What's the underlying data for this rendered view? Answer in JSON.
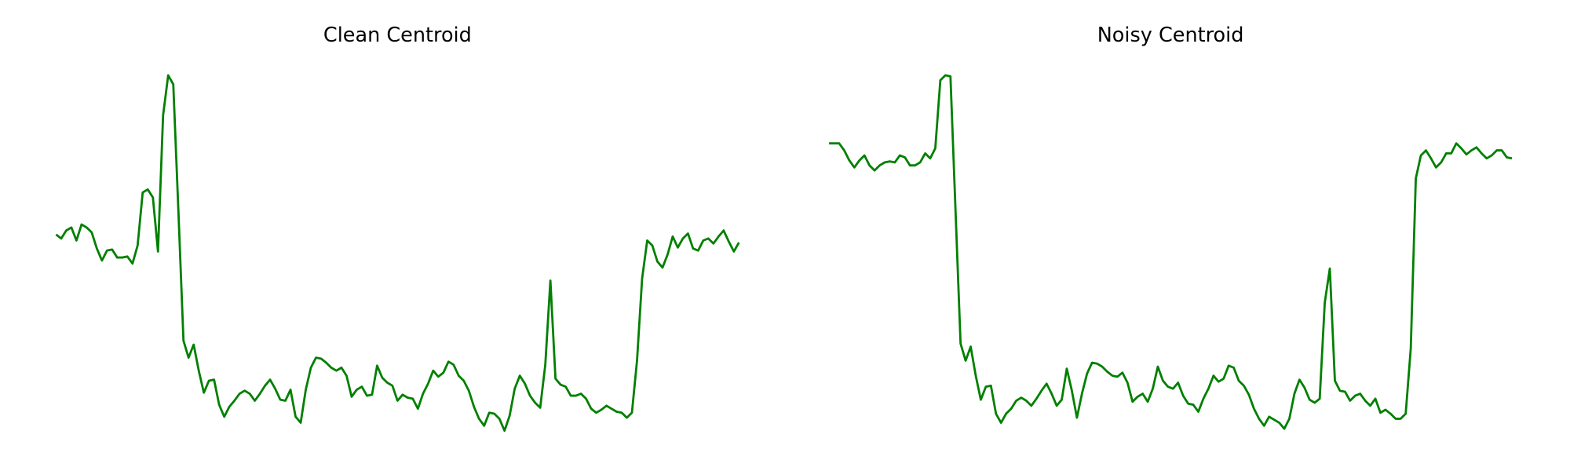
{
  "chart_data": [
    {
      "type": "line",
      "title": "Clean Centroid",
      "color": "#008000",
      "ylim": [
        -0.2,
        4.5
      ],
      "values": [
        2.16,
        2.12,
        2.2,
        2.23,
        2.1,
        2.26,
        2.23,
        2.18,
        2.02,
        1.9,
        2.0,
        2.01,
        1.93,
        1.93,
        1.94,
        1.87,
        2.05,
        2.58,
        2.61,
        2.53,
        1.99,
        3.35,
        3.75,
        3.66,
        2.4,
        1.1,
        0.93,
        1.06,
        0.8,
        0.58,
        0.7,
        0.71,
        0.46,
        0.34,
        0.44,
        0.5,
        0.57,
        0.6,
        0.57,
        0.5,
        0.57,
        0.65,
        0.71,
        0.62,
        0.51,
        0.5,
        0.61,
        0.34,
        0.28,
        0.61,
        0.83,
        0.93,
        0.92,
        0.88,
        0.83,
        0.8,
        0.83,
        0.75,
        0.54,
        0.61,
        0.64,
        0.55,
        0.56,
        0.85,
        0.73,
        0.68,
        0.65,
        0.5,
        0.56,
        0.53,
        0.52,
        0.42,
        0.57,
        0.67,
        0.8,
        0.74,
        0.78,
        0.89,
        0.86,
        0.75,
        0.7,
        0.6,
        0.44,
        0.32,
        0.25,
        0.38,
        0.37,
        0.32,
        0.2,
        0.35,
        0.62,
        0.75,
        0.67,
        0.55,
        0.48,
        0.43,
        0.86,
        1.7,
        0.72,
        0.66,
        0.64,
        0.55,
        0.55,
        0.57,
        0.52,
        0.42,
        0.38,
        0.41,
        0.45,
        0.42,
        0.39,
        0.38,
        0.33,
        0.38,
        0.9,
        1.72,
        2.1,
        2.05,
        1.89,
        1.83,
        1.96,
        2.14,
        2.03,
        2.12,
        2.17,
        2.02,
        2.0,
        2.1,
        2.12,
        2.07,
        2.14,
        2.2,
        2.09,
        1.99,
        2.08
      ]
    },
    {
      "type": "line",
      "title": "Noisy Centroid",
      "color": "#008000",
      "ylim": [
        -0.2,
        4.5
      ],
      "values": [
        3.07,
        3.07,
        3.07,
        3.0,
        2.9,
        2.83,
        2.9,
        2.95,
        2.85,
        2.8,
        2.85,
        2.88,
        2.89,
        2.88,
        2.95,
        2.93,
        2.85,
        2.85,
        2.88,
        2.97,
        2.92,
        3.02,
        3.7,
        3.75,
        3.74,
        2.4,
        1.07,
        0.9,
        1.04,
        0.75,
        0.51,
        0.64,
        0.65,
        0.37,
        0.28,
        0.37,
        0.42,
        0.5,
        0.53,
        0.5,
        0.45,
        0.52,
        0.6,
        0.67,
        0.57,
        0.45,
        0.51,
        0.82,
        0.6,
        0.33,
        0.57,
        0.77,
        0.88,
        0.87,
        0.84,
        0.79,
        0.75,
        0.74,
        0.78,
        0.68,
        0.49,
        0.54,
        0.57,
        0.49,
        0.62,
        0.84,
        0.7,
        0.64,
        0.62,
        0.68,
        0.55,
        0.47,
        0.46,
        0.39,
        0.52,
        0.62,
        0.75,
        0.69,
        0.72,
        0.85,
        0.83,
        0.7,
        0.65,
        0.56,
        0.42,
        0.32,
        0.25,
        0.34,
        0.31,
        0.28,
        0.22,
        0.32,
        0.57,
        0.71,
        0.63,
        0.51,
        0.48,
        0.52,
        1.48,
        1.82,
        0.7,
        0.6,
        0.59,
        0.5,
        0.55,
        0.57,
        0.5,
        0.45,
        0.52,
        0.38,
        0.41,
        0.37,
        0.32,
        0.32,
        0.37,
        1.02,
        2.72,
        2.95,
        3.0,
        2.92,
        2.83,
        2.88,
        2.97,
        2.97,
        3.07,
        3.02,
        2.96,
        3.0,
        3.03,
        2.97,
        2.92,
        2.95,
        3.0,
        3.0,
        2.93,
        2.92
      ]
    }
  ]
}
